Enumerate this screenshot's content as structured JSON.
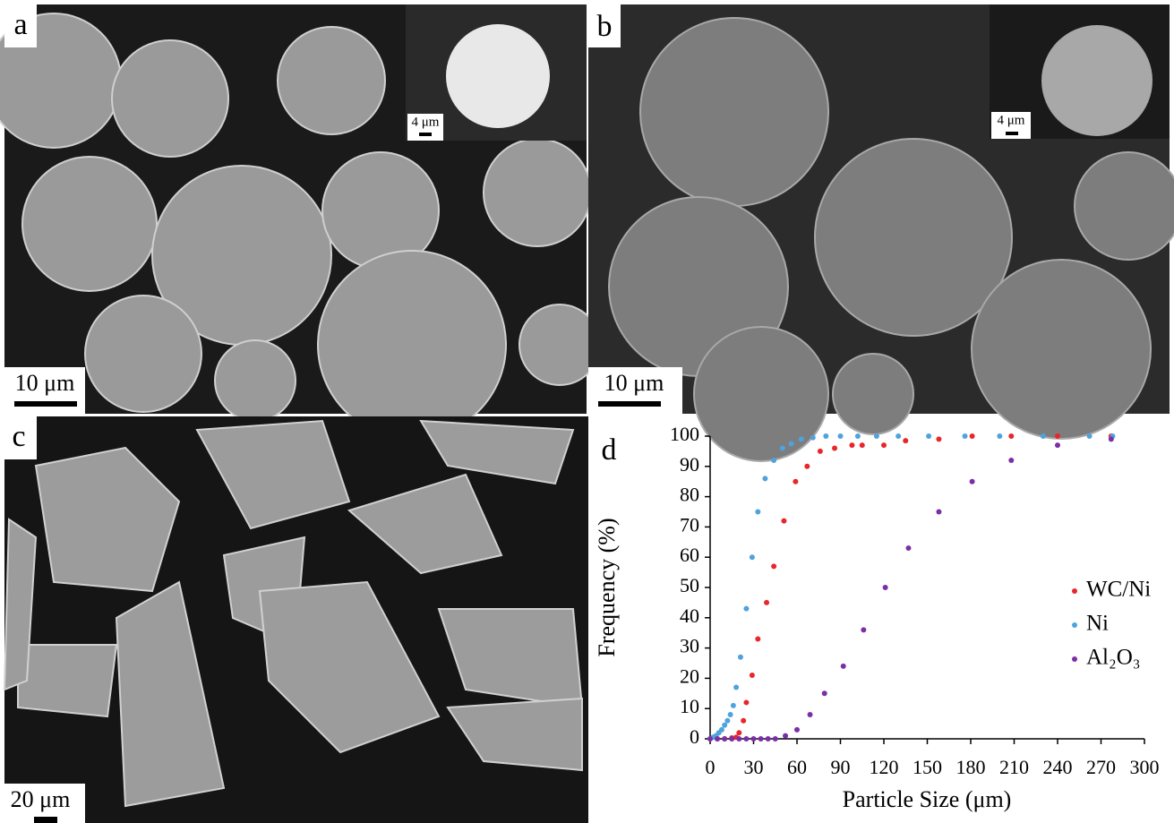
{
  "panels": [
    {
      "label": "a",
      "scale_bar": "10 μm",
      "inset_scale_bar": "4 μm"
    },
    {
      "label": "b",
      "scale_bar": "10 μm",
      "inset_scale_bar": "4 μm"
    },
    {
      "label": "c",
      "scale_bar": "20 μm"
    }
  ],
  "chart_data": {
    "type": "scatter",
    "panel_label": "d",
    "x_label": "Particle Size (μm)",
    "y_label": "Frequency (%)",
    "xlim": [
      0,
      300
    ],
    "ylim": [
      0,
      100
    ],
    "xticks": [
      0,
      30,
      60,
      90,
      120,
      150,
      180,
      210,
      240,
      270,
      300
    ],
    "yticks": [
      0,
      10,
      20,
      30,
      40,
      50,
      60,
      70,
      80,
      90,
      100
    ],
    "legend": "right",
    "series": [
      {
        "name": "WC/Ni",
        "color": "#e8262c",
        "x": [
          0,
          5,
          10,
          15,
          18,
          20,
          23,
          25,
          29,
          33,
          39,
          44,
          51,
          59,
          67,
          76,
          86,
          98,
          105,
          120,
          135,
          158,
          181,
          208,
          240,
          277
        ],
        "values": [
          0,
          0,
          0,
          0.3,
          0.5,
          2,
          6,
          12,
          21,
          33,
          45,
          57,
          72,
          85,
          90,
          95,
          96,
          97,
          97,
          97,
          98.5,
          99,
          100,
          100,
          100,
          100
        ]
      },
      {
        "name": "Ni",
        "color": "#4fa3dc",
        "x": [
          0,
          2,
          4,
          6,
          8,
          10,
          12,
          14,
          16,
          18,
          21,
          25,
          29,
          33,
          38,
          44,
          50,
          56,
          63,
          71,
          80,
          90,
          102,
          115,
          130,
          151,
          176,
          200,
          230,
          262,
          278
        ],
        "values": [
          0,
          0.5,
          1,
          2,
          3,
          4.5,
          6,
          8,
          11,
          17,
          27,
          43,
          60,
          75,
          86,
          92,
          96,
          97.5,
          99,
          99.5,
          100,
          100,
          100,
          100,
          100,
          100,
          100,
          100,
          100,
          100,
          100
        ]
      },
      {
        "name": "Al₂O₃",
        "color": "#7b2fa6",
        "x": [
          0,
          5,
          10,
          15,
          20,
          25,
          30,
          35,
          40,
          45,
          52,
          60,
          69,
          79,
          92,
          106,
          121,
          137,
          158,
          181,
          208,
          240,
          277
        ],
        "values": [
          0,
          0,
          0,
          0,
          0,
          0,
          0,
          0,
          0,
          0,
          1,
          3,
          8,
          15,
          24,
          36,
          50,
          63,
          75,
          85,
          92,
          97,
          99
        ]
      }
    ]
  }
}
